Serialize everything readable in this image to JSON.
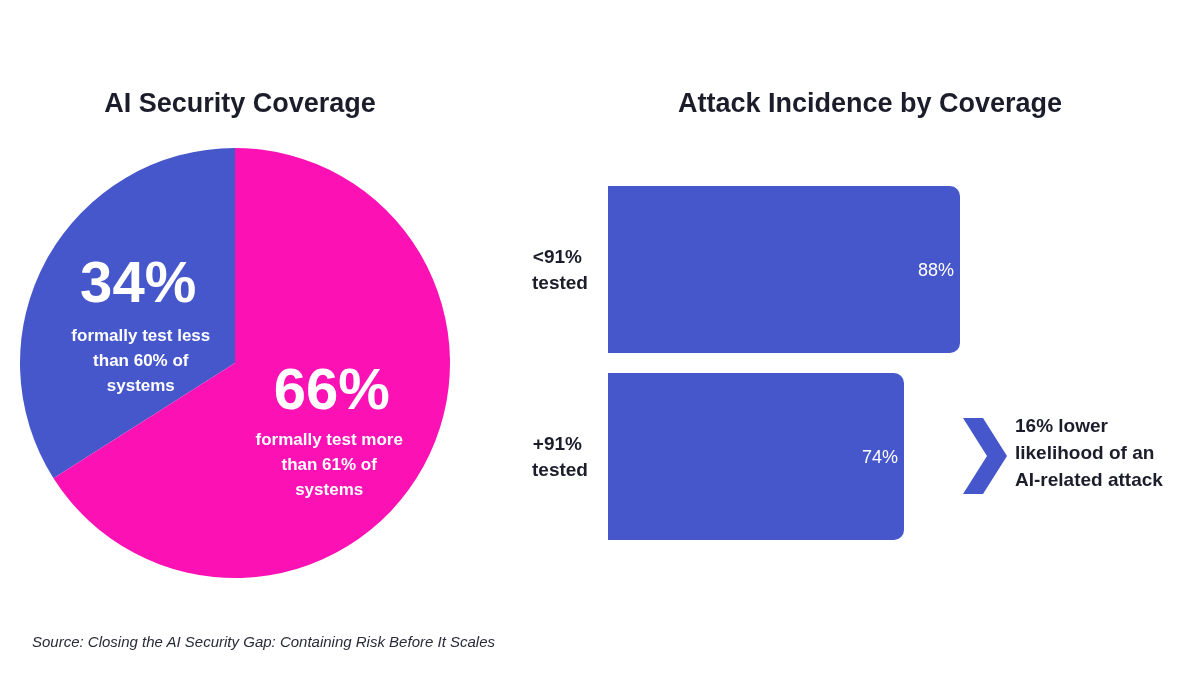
{
  "chart_data": [
    {
      "type": "pie",
      "title": "AI Security Coverage",
      "categories": [
        "formally test less than 60% of systems",
        "formally test more than 61% of systems"
      ],
      "values": [
        34,
        66
      ],
      "colors": [
        "#4657cc",
        "#fc12b4"
      ],
      "value_labels": [
        "34%",
        "66%"
      ],
      "annotations": [
        "Source: Closing the AI Security Gap: Containing Risk Before It Scales"
      ]
    },
    {
      "type": "bar",
      "orientation": "horizontal",
      "title": "Attack Incidence by Coverage",
      "categories": [
        "<91% tested",
        "+91% tested"
      ],
      "values": [
        88,
        74
      ],
      "color": "#4657cc",
      "value_labels": [
        "88%",
        "74%"
      ],
      "annotations": [
        "16% lower likelihood of an AI-related attack"
      ]
    }
  ]
}
